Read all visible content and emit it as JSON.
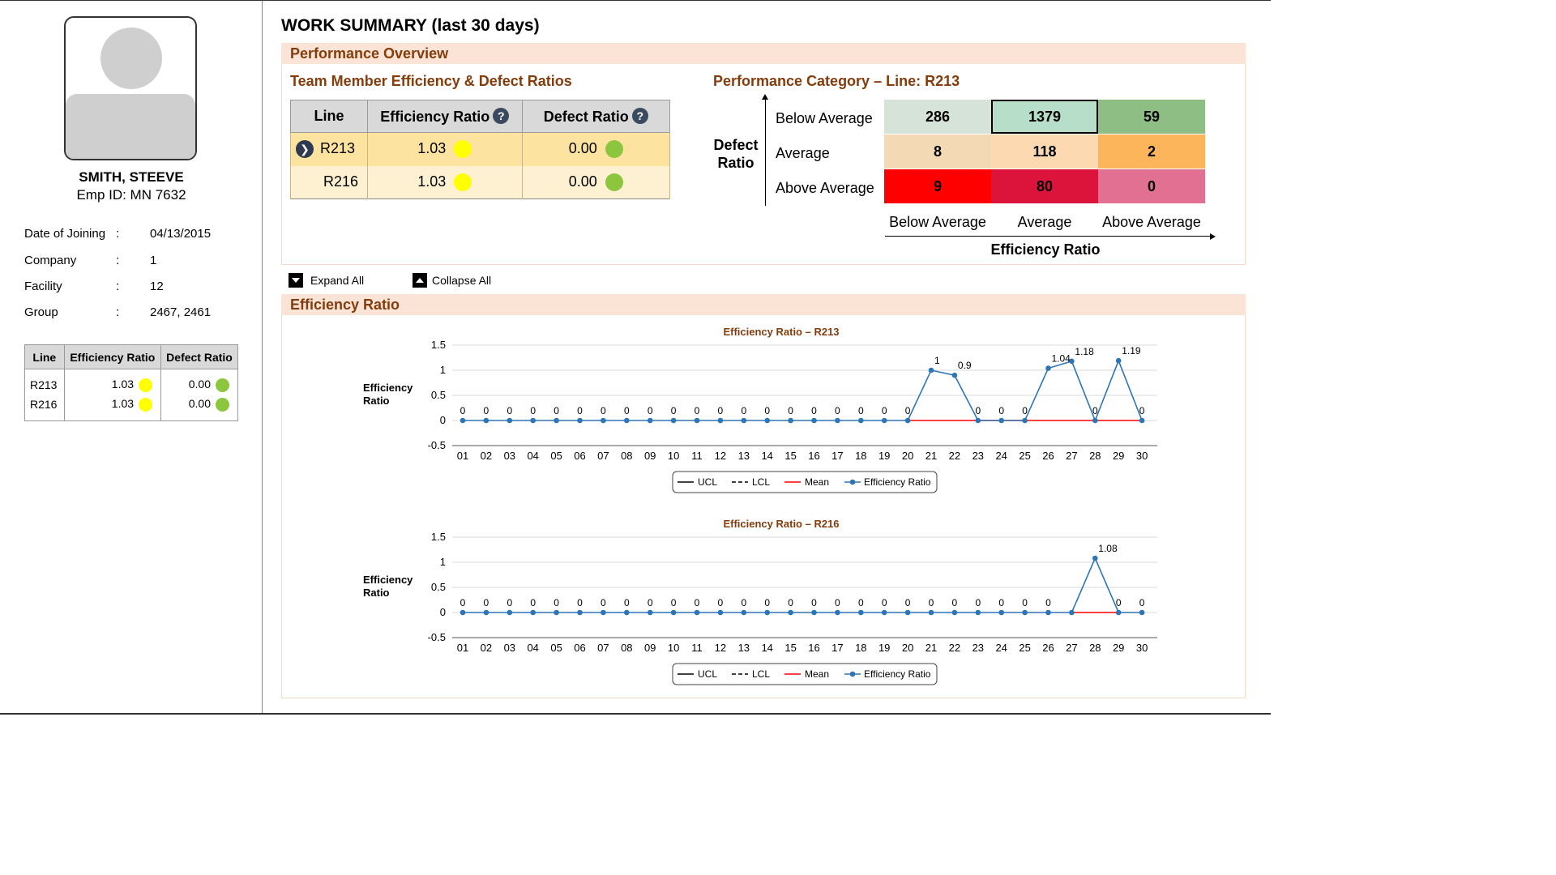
{
  "employee": {
    "name": "SMITH, STEEVE",
    "emp_id": "Emp ID: MN 7632",
    "details": [
      {
        "key": "Date of Joining",
        "value": "04/13/2015"
      },
      {
        "key": "Company",
        "value": "1"
      },
      {
        "key": "Facility",
        "value": "12"
      },
      {
        "key": "Group",
        "value": "2467, 2461"
      }
    ],
    "separator": ":"
  },
  "mini_table": {
    "headers": [
      "Line",
      "Efficiency Ratio",
      "Defect Ratio"
    ],
    "rows": [
      {
        "line": "R213",
        "efficiency": "1.03",
        "defect": "0.00"
      },
      {
        "line": "R216",
        "efficiency": "1.03",
        "defect": "0.00"
      }
    ]
  },
  "main": {
    "title": "WORK SUMMARY (last 30 days)",
    "performance_section": "Performance Overview",
    "team_title": "Team Member Efficiency & Defect Ratios",
    "team_table": {
      "headers": [
        "Line",
        "Efficiency Ratio",
        "Defect Ratio"
      ],
      "help_glyph": "?",
      "selected_glyph": "❯",
      "rows": [
        {
          "line": "R213",
          "efficiency": "1.03",
          "defect": "0.00"
        },
        {
          "line": "R216",
          "efficiency": "1.03",
          "defect": "0.00"
        }
      ]
    },
    "category_title": "Performance Category – Line: R213",
    "matrix": {
      "defect_axis_label_1": "Defect",
      "defect_axis_label_2": "Ratio",
      "efficiency_axis_label": "Efficiency Ratio",
      "row_labels": [
        "Below Average",
        "Average",
        "Above Average"
      ],
      "col_labels": [
        "Below Average",
        "Average",
        "Above Average"
      ],
      "values": [
        [
          "286",
          "1379",
          "59"
        ],
        [
          "8",
          "118",
          "2"
        ],
        [
          "9",
          "80",
          "0"
        ]
      ],
      "colors": [
        [
          "#d6e3d8",
          "#b6dec8",
          "#8fbe85"
        ],
        [
          "#f4d9b5",
          "#fcd9b0",
          "#fdb55c"
        ],
        [
          "#fe0000",
          "#dc143c",
          "#e17092"
        ]
      ],
      "selected_cell": [
        0,
        1
      ]
    },
    "expand_all": "Expand All",
    "collapse_all": "Collapse All",
    "efficiency_section": "Efficiency Ratio"
  },
  "colors": {
    "yellow_indicator": "#ffff00",
    "green_indicator": "#8cc63f",
    "series_line": "#2e75b6",
    "mean_line": "#ff0000",
    "section_text": "#843c0c",
    "section_bg": "#fbe4d6"
  },
  "chart_data": [
    {
      "type": "line",
      "title": "Efficiency Ratio – R213",
      "ylabel": "Efficiency Ratio",
      "ylim": [
        -0.5,
        1.5
      ],
      "yticks": [
        "1.5",
        "1",
        "0.5",
        "0",
        "-0.5"
      ],
      "x": [
        "01",
        "02",
        "03",
        "04",
        "05",
        "06",
        "07",
        "08",
        "09",
        "10",
        "11",
        "12",
        "13",
        "14",
        "15",
        "16",
        "17",
        "18",
        "19",
        "20",
        "21",
        "22",
        "23",
        "24",
        "25",
        "26",
        "27",
        "28",
        "29",
        "30"
      ],
      "series": [
        {
          "name": "Efficiency Ratio",
          "values": [
            0,
            0,
            0,
            0,
            0,
            0,
            0,
            0,
            0,
            0,
            0,
            0,
            0,
            0,
            0,
            0,
            0,
            0,
            0,
            0,
            1,
            0.9,
            0,
            0,
            0,
            1.04,
            1.18,
            0,
            1.19,
            0
          ]
        },
        {
          "name": "Mean",
          "from": "20",
          "to": "30",
          "value": 0
        }
      ],
      "point_labels": [
        "0",
        "0",
        "0",
        "0",
        "0",
        "0",
        "0",
        "0",
        "0",
        "0",
        "0",
        "0",
        "0",
        "0",
        "0",
        "0",
        "0",
        "0",
        "0",
        "0",
        "1",
        "0.9",
        "0",
        "0",
        "0",
        "1.04",
        "1.18",
        "0",
        "1.19",
        "0"
      ],
      "legend": [
        "UCL",
        "LCL",
        "Mean",
        "Efficiency Ratio"
      ],
      "legend_position": "bottom",
      "grid": true
    },
    {
      "type": "line",
      "title": "Efficiency Ratio – R216",
      "ylabel": "Efficiency Ratio",
      "ylim": [
        -0.5,
        1.5
      ],
      "yticks": [
        "1.5",
        "1",
        "0.5",
        "0",
        "-0.5"
      ],
      "x": [
        "01",
        "02",
        "03",
        "04",
        "05",
        "06",
        "07",
        "08",
        "09",
        "10",
        "11",
        "12",
        "13",
        "14",
        "15",
        "16",
        "17",
        "18",
        "19",
        "20",
        "21",
        "22",
        "23",
        "24",
        "25",
        "26",
        "27",
        "28",
        "29",
        "30"
      ],
      "series": [
        {
          "name": "Efficiency Ratio",
          "values": [
            0,
            0,
            0,
            0,
            0,
            0,
            0,
            0,
            0,
            0,
            0,
            0,
            0,
            0,
            0,
            0,
            0,
            0,
            0,
            0,
            0,
            0,
            0,
            0,
            0,
            0,
            0,
            1.08,
            0,
            0
          ]
        },
        {
          "name": "Mean",
          "from": "27",
          "to": "29",
          "value": 0
        }
      ],
      "point_labels": [
        "0",
        "0",
        "0",
        "0",
        "0",
        "0",
        "0",
        "0",
        "0",
        "0",
        "0",
        "0",
        "0",
        "0",
        "0",
        "0",
        "0",
        "0",
        "0",
        "0",
        "0",
        "0",
        "0",
        "0",
        "0",
        "0",
        "",
        "1.08",
        "0",
        "0"
      ],
      "legend": [
        "UCL",
        "LCL",
        "Mean",
        "Efficiency Ratio"
      ],
      "legend_position": "bottom",
      "grid": true
    }
  ]
}
